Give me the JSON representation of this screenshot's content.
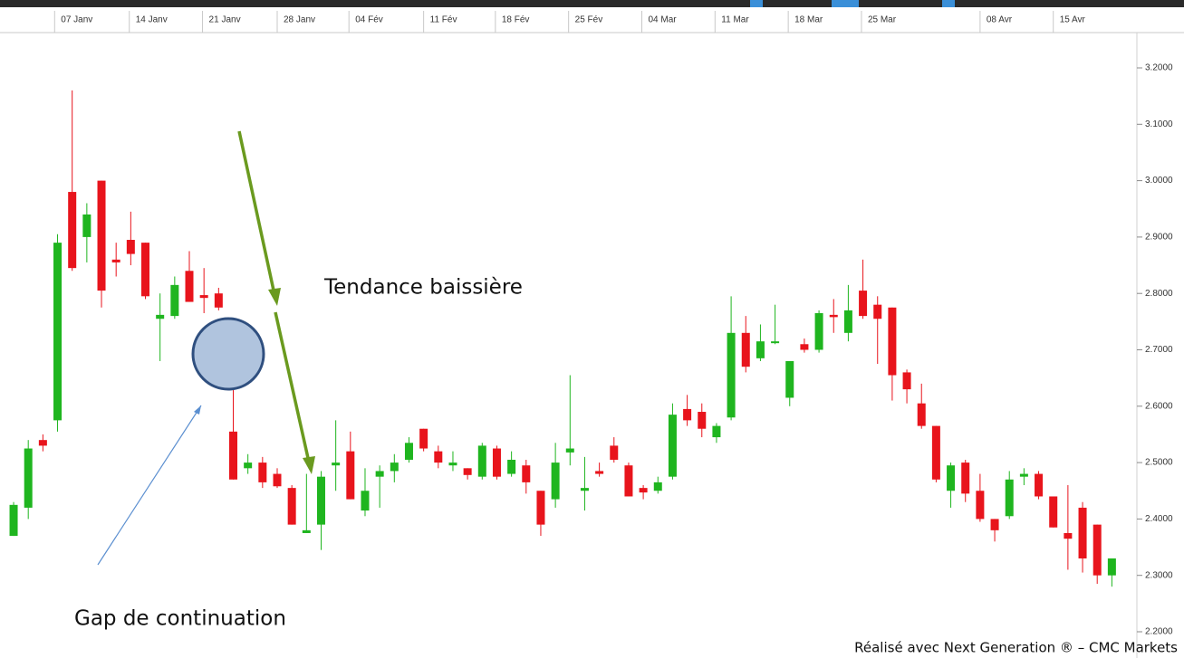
{
  "chart_data": {
    "type": "candlestick",
    "annotations": [
      "Tendance baissière",
      "Gap de continuation"
    ],
    "footer": "Réalisé avec Next Generation ® – CMC Markets",
    "up_color": "#1fb51f",
    "down_color": "#e8141c",
    "open": [
      2.37,
      2.42,
      2.54,
      2.575,
      2.98,
      2.9,
      3.0,
      2.86,
      2.895,
      2.89,
      2.755,
      2.76,
      2.84,
      2.797,
      2.8,
      2.555,
      2.49,
      2.5,
      2.48,
      2.455,
      2.375,
      2.39,
      2.495,
      2.52,
      2.415,
      2.475,
      2.485,
      2.505,
      2.56,
      2.52,
      2.495,
      2.49,
      2.475,
      2.525,
      2.48,
      2.495,
      2.45,
      2.435,
      2.518,
      2.45,
      2.485,
      2.53,
      2.495,
      2.455,
      2.45,
      2.475,
      2.595,
      2.59,
      2.545,
      2.58,
      2.73,
      2.685,
      2.712,
      2.615,
      2.71,
      2.7,
      2.762,
      2.73,
      2.805,
      2.78,
      2.775,
      2.66,
      2.605,
      2.565,
      2.45,
      2.5,
      2.45,
      2.4,
      2.405,
      2.475,
      2.48,
      2.44,
      2.375,
      2.42,
      2.39,
      2.3
    ],
    "high": [
      2.43,
      2.54,
      2.55,
      2.905,
      3.16,
      2.96,
      3.0,
      2.89,
      2.945,
      2.89,
      2.8,
      2.83,
      2.875,
      2.845,
      2.81,
      2.645,
      2.515,
      2.51,
      2.49,
      2.46,
      2.48,
      2.485,
      2.575,
      2.555,
      2.49,
      2.495,
      2.515,
      2.545,
      2.56,
      2.53,
      2.52,
      2.49,
      2.535,
      2.53,
      2.52,
      2.505,
      2.45,
      2.535,
      2.655,
      2.51,
      2.5,
      2.545,
      2.5,
      2.46,
      2.475,
      2.605,
      2.62,
      2.605,
      2.57,
      2.795,
      2.76,
      2.745,
      2.78,
      2.68,
      2.72,
      2.77,
      2.79,
      2.815,
      2.86,
      2.795,
      2.775,
      2.665,
      2.64,
      2.565,
      2.5,
      2.505,
      2.48,
      2.4,
      2.485,
      2.49,
      2.485,
      2.44,
      2.46,
      2.43,
      2.39,
      2.33
    ],
    "low": [
      2.37,
      2.4,
      2.52,
      2.555,
      2.84,
      2.855,
      2.775,
      2.83,
      2.85,
      2.79,
      2.68,
      2.755,
      2.785,
      2.765,
      2.77,
      2.47,
      2.48,
      2.455,
      2.455,
      2.39,
      2.375,
      2.345,
      2.45,
      2.435,
      2.405,
      2.42,
      2.465,
      2.5,
      2.52,
      2.49,
      2.485,
      2.47,
      2.47,
      2.47,
      2.475,
      2.445,
      2.37,
      2.42,
      2.495,
      2.415,
      2.475,
      2.5,
      2.44,
      2.435,
      2.445,
      2.47,
      2.565,
      2.545,
      2.535,
      2.575,
      2.66,
      2.68,
      2.71,
      2.6,
      2.695,
      2.695,
      2.73,
      2.715,
      2.755,
      2.675,
      2.61,
      2.605,
      2.56,
      2.465,
      2.42,
      2.43,
      2.395,
      2.36,
      2.4,
      2.46,
      2.435,
      2.385,
      2.31,
      2.305,
      2.285,
      2.28
    ],
    "close": [
      2.425,
      2.525,
      2.53,
      2.89,
      2.845,
      2.94,
      2.805,
      2.855,
      2.87,
      2.795,
      2.762,
      2.815,
      2.785,
      2.792,
      2.775,
      2.47,
      2.5,
      2.465,
      2.458,
      2.39,
      2.38,
      2.475,
      2.5,
      2.435,
      2.45,
      2.485,
      2.5,
      2.535,
      2.525,
      2.5,
      2.5,
      2.478,
      2.53,
      2.475,
      2.505,
      2.465,
      2.39,
      2.5,
      2.525,
      2.455,
      2.48,
      2.505,
      2.44,
      2.447,
      2.465,
      2.585,
      2.575,
      2.56,
      2.565,
      2.73,
      2.67,
      2.715,
      2.715,
      2.68,
      2.7,
      2.765,
      2.758,
      2.77,
      2.76,
      2.755,
      2.655,
      2.63,
      2.565,
      2.47,
      2.495,
      2.445,
      2.4,
      2.38,
      2.47,
      2.48,
      2.44,
      2.385,
      2.365,
      2.33,
      2.3,
      2.33
    ],
    "xlim": [
      -0.93,
      76.4
    ],
    "xticks": [
      {
        "value": 2.8,
        "label": "07 Janv"
      },
      {
        "value": 7.9,
        "label": "14 Janv"
      },
      {
        "value": 12.9,
        "label": "21 Janv"
      },
      {
        "value": 18.0,
        "label": "28 Janv"
      },
      {
        "value": 22.9,
        "label": "04 Fév"
      },
      {
        "value": 28.0,
        "label": "11 Fév"
      },
      {
        "value": 32.9,
        "label": "18 Fév"
      },
      {
        "value": 37.9,
        "label": "25 Fév"
      },
      {
        "value": 42.9,
        "label": "04 Mar"
      },
      {
        "value": 47.9,
        "label": "11 Mar"
      },
      {
        "value": 52.9,
        "label": "18 Mar"
      },
      {
        "value": 57.9,
        "label": "25 Mar"
      },
      {
        "value": 66.0,
        "label": "08 Avr"
      },
      {
        "value": 71.0,
        "label": "15 Avr"
      }
    ],
    "ylim": [
      2.2,
      3.2
    ],
    "yticks": [
      {
        "value": 2.2,
        "label": "2.2000"
      },
      {
        "value": 2.3,
        "label": "2.3000"
      },
      {
        "value": 2.4,
        "label": "2.4000"
      },
      {
        "value": 2.5,
        "label": "2.5000"
      },
      {
        "value": 2.6,
        "label": "2.6000"
      },
      {
        "value": 2.7,
        "label": "2.7000"
      },
      {
        "value": 2.8,
        "label": "2.8000"
      },
      {
        "value": 2.9,
        "label": "2.9000"
      },
      {
        "value": 3.0,
        "label": "3.0000"
      },
      {
        "value": 3.1,
        "label": "3.1000"
      },
      {
        "value": 3.2,
        "label": "3.2000"
      }
    ]
  }
}
